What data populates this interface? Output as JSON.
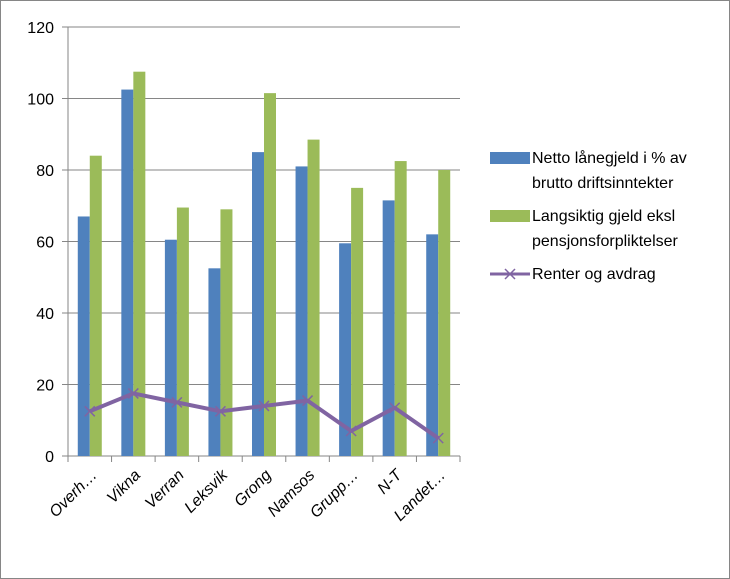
{
  "chart_data": {
    "type": "bar",
    "categories": [
      "Overh…",
      "Vikna",
      "Verran",
      "Leksvik",
      "Grong",
      "Namsos",
      "Grupp…",
      "N-T",
      "Landet…"
    ],
    "series": [
      {
        "name": "Netto lånegjeld i % av brutto driftsinntekter",
        "color": "#4f81bd",
        "type": "bar",
        "values": [
          67,
          102.5,
          60.5,
          52.5,
          85,
          81,
          59.5,
          71.5,
          62
        ]
      },
      {
        "name": "Langsiktig gjeld eksl pensjonsforpliktelser",
        "color": "#9bbb59",
        "type": "bar",
        "values": [
          84,
          107.5,
          69.5,
          69,
          101.5,
          88.5,
          75,
          82.5,
          80
        ]
      },
      {
        "name": "Renter og avdrag",
        "color": "#8064a2",
        "type": "line",
        "values": [
          12.5,
          17.5,
          15,
          12.5,
          14,
          15.5,
          7,
          13.5,
          5
        ]
      }
    ],
    "ylim": [
      0,
      120
    ],
    "yticks": [
      0,
      20,
      40,
      60,
      80,
      100,
      120
    ],
    "grid": true,
    "legend": "right"
  }
}
